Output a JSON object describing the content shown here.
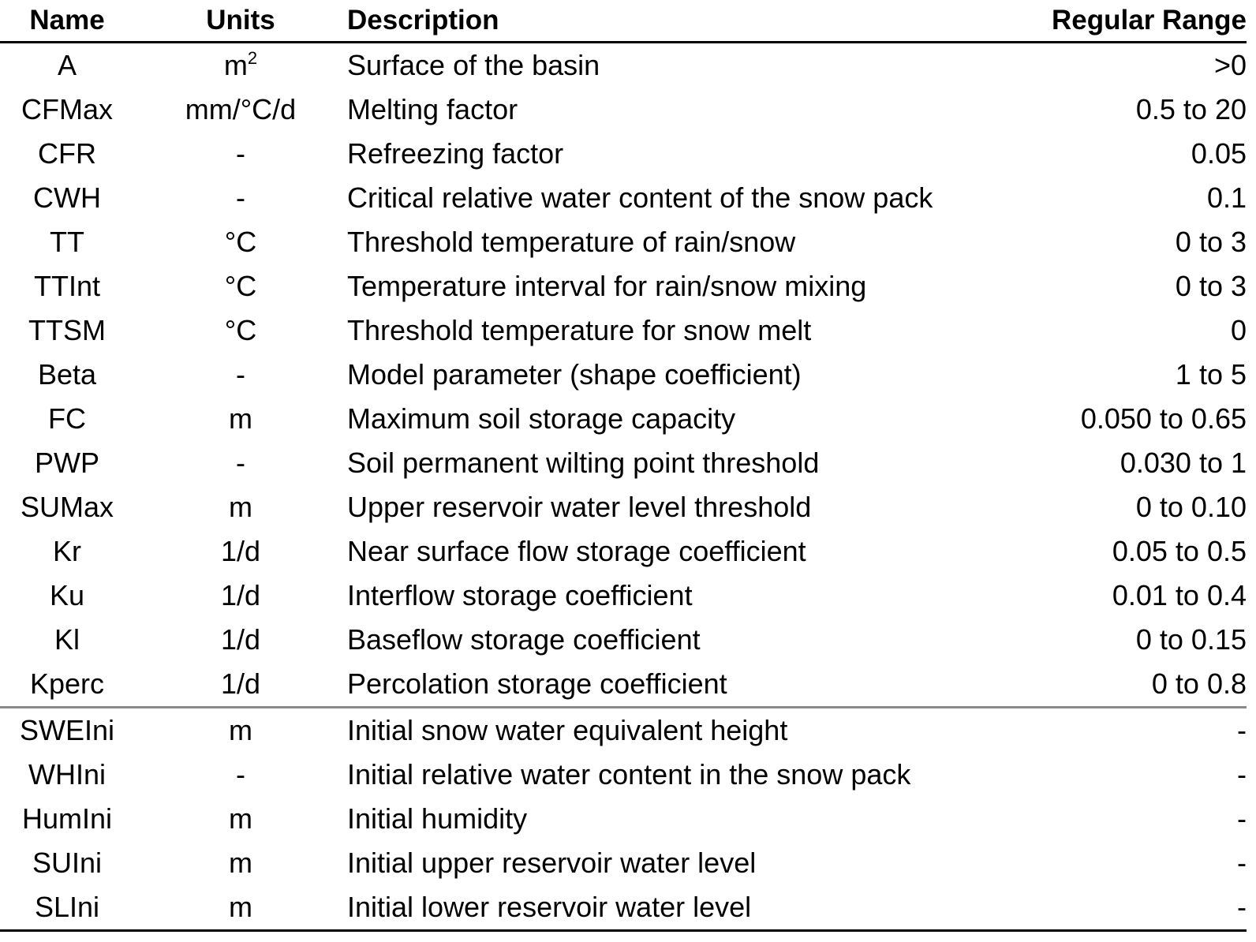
{
  "columns": {
    "name": "Name",
    "units": "Units",
    "description": "Description",
    "range": "Regular Range"
  },
  "area_row": {
    "name": "A",
    "units_base": "m",
    "units_sup": "2",
    "description": "Surface of the basin",
    "range": ">0"
  },
  "parameters": [
    {
      "name": "CFMax",
      "units": "mm/°C/d",
      "description": "Melting factor",
      "range": "0.5 to 20"
    },
    {
      "name": "CFR",
      "units": "-",
      "description": "Refreezing factor",
      "range": "0.05"
    },
    {
      "name": "CWH",
      "units": "-",
      "description": "Critical relative water content of the snow pack",
      "range": "0.1"
    },
    {
      "name": "TT",
      "units": "°C",
      "description": "Threshold temperature of rain/snow",
      "range": "0 to 3"
    },
    {
      "name": "TTInt",
      "units": "°C",
      "description": "Temperature interval for rain/snow mixing",
      "range": "0 to 3"
    },
    {
      "name": "TTSM",
      "units": "°C",
      "description": "Threshold temperature for snow melt",
      "range": "0"
    },
    {
      "name": "Beta",
      "units": "-",
      "description": "Model parameter (shape coefficient)",
      "range": "1 to 5"
    },
    {
      "name": "FC",
      "units": "m",
      "description": "Maximum soil storage capacity",
      "range": "0.050 to 0.65"
    },
    {
      "name": "PWP",
      "units": "-",
      "description": "Soil permanent wilting point threshold",
      "range": "0.030 to 1"
    },
    {
      "name": "SUMax",
      "units": "m",
      "description": "Upper reservoir water level threshold",
      "range": "0 to 0.10"
    },
    {
      "name": "Kr",
      "units": "1/d",
      "description": "Near surface flow storage coefficient",
      "range": "0.05 to 0.5"
    },
    {
      "name": "Ku",
      "units": "1/d",
      "description": "Interflow storage coefficient",
      "range": "0.01 to 0.4"
    },
    {
      "name": "Kl",
      "units": "1/d",
      "description": "Baseflow storage coefficient",
      "range": "0 to 0.15"
    },
    {
      "name": "Kperc",
      "units": "1/d",
      "description": "Percolation storage coefficient",
      "range": "0 to 0.8"
    }
  ],
  "initial_conditions": [
    {
      "name": "SWEIni",
      "units": "m",
      "description": "Initial snow water equivalent height",
      "range": "-"
    },
    {
      "name": "WHIni",
      "units": "-",
      "description": "Initial relative water content in the snow pack",
      "range": "-"
    },
    {
      "name": "HumIni",
      "units": "m",
      "description": "Initial humidity",
      "range": "-"
    },
    {
      "name": "SUIni",
      "units": "m",
      "description": "Initial upper reservoir water level",
      "range": "-"
    },
    {
      "name": "SLIni",
      "units": "m",
      "description": "Initial lower reservoir water level",
      "range": "-"
    }
  ]
}
